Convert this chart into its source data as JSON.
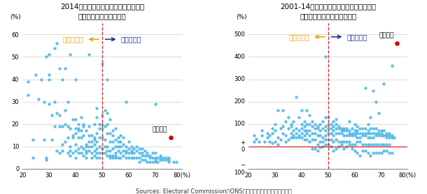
{
  "title1": "2014年時点での都市別の外国生まれの\n人口比率と離脱派の比率",
  "title2": "2001-14年における都市別の外国生まれの\n人口の増加率と離脱派の比率",
  "xlim": [
    20,
    80
  ],
  "ylim1": [
    0,
    65
  ],
  "ylim2": [
    -100,
    550
  ],
  "yticks1": [
    0,
    10,
    20,
    30,
    40,
    50,
    60
  ],
  "yticks2": [
    -100,
    0,
    100,
    200,
    300,
    400,
    500
  ],
  "xticks": [
    20,
    30,
    40,
    50,
    60,
    70,
    80
  ],
  "vline_x": 50,
  "dot_color": "#4db8e8",
  "boston_color": "#cc0000",
  "label_remain": "残留多数派",
  "label_leave": "離脱多数派",
  "label_remain_color": "#f0a500",
  "label_leave_color": "#1a3399",
  "boston_label": "ボストン",
  "boston1_x": 76,
  "boston1_y": 14,
  "boston2_x": 76,
  "boston2_y": 460,
  "source_text": "Sources: Electoral Commission、ONSなどのデータを参照として制作",
  "plot1_dots": [
    [
      22,
      33
    ],
    [
      22,
      39
    ],
    [
      24,
      5
    ],
    [
      24,
      13
    ],
    [
      25,
      42
    ],
    [
      26,
      31
    ],
    [
      27,
      40
    ],
    [
      28,
      30
    ],
    [
      28,
      13
    ],
    [
      29,
      5
    ],
    [
      29,
      4
    ],
    [
      29,
      50
    ],
    [
      30,
      51
    ],
    [
      30,
      29
    ],
    [
      30,
      40
    ],
    [
      30,
      42
    ],
    [
      31,
      13
    ],
    [
      31,
      24
    ],
    [
      32,
      54
    ],
    [
      32,
      19
    ],
    [
      32,
      30
    ],
    [
      33,
      8
    ],
    [
      33,
      25
    ],
    [
      33,
      56
    ],
    [
      34,
      45
    ],
    [
      34,
      7
    ],
    [
      34,
      24
    ],
    [
      34,
      19
    ],
    [
      35,
      40
    ],
    [
      35,
      19
    ],
    [
      35,
      11
    ],
    [
      35,
      8
    ],
    [
      36,
      45
    ],
    [
      36,
      26
    ],
    [
      36,
      20
    ],
    [
      36,
      12
    ],
    [
      37,
      19
    ],
    [
      37,
      7
    ],
    [
      37,
      14
    ],
    [
      37,
      30
    ],
    [
      38,
      6
    ],
    [
      38,
      18
    ],
    [
      38,
      10
    ],
    [
      38,
      8
    ],
    [
      38,
      51
    ],
    [
      39,
      22
    ],
    [
      39,
      15
    ],
    [
      39,
      7
    ],
    [
      39,
      14
    ],
    [
      40,
      40
    ],
    [
      40,
      18
    ],
    [
      40,
      11
    ],
    [
      40,
      5
    ],
    [
      40,
      16
    ],
    [
      40,
      8
    ],
    [
      40,
      22
    ],
    [
      41,
      17
    ],
    [
      41,
      9
    ],
    [
      41,
      7
    ],
    [
      41,
      20
    ],
    [
      41,
      14
    ],
    [
      41,
      18
    ],
    [
      42,
      14
    ],
    [
      42,
      10
    ],
    [
      42,
      7
    ],
    [
      42,
      17
    ],
    [
      42,
      23
    ],
    [
      43,
      19
    ],
    [
      43,
      15
    ],
    [
      43,
      9
    ],
    [
      43,
      6
    ],
    [
      43,
      20
    ],
    [
      44,
      17
    ],
    [
      44,
      11
    ],
    [
      44,
      7
    ],
    [
      44,
      10
    ],
    [
      44,
      8
    ],
    [
      44,
      5
    ],
    [
      45,
      8
    ],
    [
      45,
      19
    ],
    [
      45,
      15
    ],
    [
      45,
      51
    ],
    [
      45,
      10
    ],
    [
      45,
      12
    ],
    [
      46,
      12
    ],
    [
      46,
      7
    ],
    [
      46,
      5
    ],
    [
      46,
      10
    ],
    [
      46,
      15
    ],
    [
      47,
      20
    ],
    [
      47,
      13
    ],
    [
      47,
      8
    ],
    [
      47,
      6
    ],
    [
      47,
      14
    ],
    [
      47,
      11
    ],
    [
      48,
      9
    ],
    [
      48,
      16
    ],
    [
      48,
      12
    ],
    [
      48,
      5
    ],
    [
      48,
      7
    ],
    [
      48,
      23
    ],
    [
      48,
      27
    ],
    [
      49,
      14
    ],
    [
      49,
      10
    ],
    [
      49,
      7
    ],
    [
      49,
      5
    ],
    [
      49,
      18
    ],
    [
      49,
      20
    ],
    [
      50,
      24
    ],
    [
      50,
      47
    ],
    [
      50,
      20
    ],
    [
      50,
      14
    ],
    [
      50,
      9
    ],
    [
      50,
      7
    ],
    [
      50,
      18
    ],
    [
      51,
      19
    ],
    [
      51,
      13
    ],
    [
      51,
      10
    ],
    [
      51,
      7
    ],
    [
      51,
      26
    ],
    [
      52,
      16
    ],
    [
      52,
      10
    ],
    [
      52,
      8
    ],
    [
      52,
      6
    ],
    [
      52,
      20
    ],
    [
      52,
      25
    ],
    [
      52,
      40
    ],
    [
      53,
      16
    ],
    [
      53,
      12
    ],
    [
      53,
      8
    ],
    [
      53,
      6
    ],
    [
      53,
      5
    ],
    [
      53,
      22
    ],
    [
      54,
      12
    ],
    [
      54,
      9
    ],
    [
      54,
      6
    ],
    [
      54,
      5
    ],
    [
      54,
      17
    ],
    [
      54,
      15
    ],
    [
      55,
      10
    ],
    [
      55,
      7
    ],
    [
      55,
      6
    ],
    [
      55,
      5
    ],
    [
      55,
      13
    ],
    [
      55,
      18
    ],
    [
      56,
      10
    ],
    [
      56,
      8
    ],
    [
      56,
      5
    ],
    [
      56,
      14
    ],
    [
      56,
      12
    ],
    [
      57,
      10
    ],
    [
      57,
      7
    ],
    [
      57,
      5
    ],
    [
      57,
      15
    ],
    [
      57,
      12
    ],
    [
      58,
      8
    ],
    [
      58,
      6
    ],
    [
      58,
      11
    ],
    [
      58,
      14
    ],
    [
      59,
      8
    ],
    [
      59,
      5
    ],
    [
      59,
      10
    ],
    [
      59,
      7
    ],
    [
      59,
      30
    ],
    [
      60,
      7
    ],
    [
      60,
      5
    ],
    [
      60,
      9
    ],
    [
      60,
      12
    ],
    [
      61,
      8
    ],
    [
      61,
      5
    ],
    [
      61,
      10
    ],
    [
      61,
      7
    ],
    [
      62,
      7
    ],
    [
      62,
      5
    ],
    [
      62,
      9
    ],
    [
      63,
      8
    ],
    [
      63,
      5
    ],
    [
      63,
      10
    ],
    [
      64,
      7
    ],
    [
      64,
      5
    ],
    [
      64,
      9
    ],
    [
      64,
      3
    ],
    [
      65,
      7
    ],
    [
      65,
      4
    ],
    [
      65,
      9
    ],
    [
      65,
      6
    ],
    [
      66,
      6
    ],
    [
      66,
      4
    ],
    [
      66,
      8
    ],
    [
      67,
      6
    ],
    [
      67,
      3
    ],
    [
      67,
      7
    ],
    [
      68,
      5
    ],
    [
      68,
      3
    ],
    [
      68,
      6
    ],
    [
      69,
      5
    ],
    [
      69,
      3
    ],
    [
      69,
      7
    ],
    [
      70,
      5
    ],
    [
      70,
      3
    ],
    [
      70,
      7
    ],
    [
      70,
      4
    ],
    [
      70,
      29
    ],
    [
      71,
      5
    ],
    [
      71,
      3
    ],
    [
      72,
      5
    ],
    [
      72,
      4
    ],
    [
      72,
      6
    ],
    [
      73,
      5
    ],
    [
      73,
      4
    ],
    [
      74,
      4
    ],
    [
      74,
      5
    ],
    [
      75,
      4
    ],
    [
      75,
      3
    ],
    [
      75,
      5
    ],
    [
      77,
      3
    ],
    [
      78,
      3
    ]
  ],
  "plot2_dots": [
    [
      22,
      50
    ],
    [
      22,
      20
    ],
    [
      23,
      35
    ],
    [
      24,
      20
    ],
    [
      25,
      70
    ],
    [
      25,
      50
    ],
    [
      26,
      20
    ],
    [
      27,
      60
    ],
    [
      27,
      40
    ],
    [
      28,
      20
    ],
    [
      28,
      50
    ],
    [
      29,
      15
    ],
    [
      29,
      80
    ],
    [
      29,
      60
    ],
    [
      30,
      20
    ],
    [
      30,
      100
    ],
    [
      30,
      70
    ],
    [
      31,
      10
    ],
    [
      31,
      40
    ],
    [
      31,
      160
    ],
    [
      32,
      80
    ],
    [
      32,
      30
    ],
    [
      33,
      90
    ],
    [
      33,
      60
    ],
    [
      33,
      160
    ],
    [
      34,
      110
    ],
    [
      34,
      50
    ],
    [
      34,
      20
    ],
    [
      35,
      130
    ],
    [
      35,
      80
    ],
    [
      35,
      30
    ],
    [
      36,
      90
    ],
    [
      36,
      60
    ],
    [
      36,
      100
    ],
    [
      36,
      40
    ],
    [
      37,
      70
    ],
    [
      37,
      110
    ],
    [
      37,
      50
    ],
    [
      37,
      40
    ],
    [
      38,
      80
    ],
    [
      38,
      60
    ],
    [
      38,
      220
    ],
    [
      38,
      40
    ],
    [
      39,
      70
    ],
    [
      39,
      130
    ],
    [
      39,
      50
    ],
    [
      39,
      40
    ],
    [
      40,
      80
    ],
    [
      40,
      100
    ],
    [
      40,
      60
    ],
    [
      40,
      40
    ],
    [
      40,
      160
    ],
    [
      41,
      70
    ],
    [
      41,
      110
    ],
    [
      41,
      50
    ],
    [
      41,
      30
    ],
    [
      41,
      90
    ],
    [
      42,
      70
    ],
    [
      42,
      100
    ],
    [
      42,
      60
    ],
    [
      42,
      30
    ],
    [
      42,
      160
    ],
    [
      43,
      70
    ],
    [
      43,
      100
    ],
    [
      43,
      50
    ],
    [
      43,
      20
    ],
    [
      43,
      140
    ],
    [
      44,
      60
    ],
    [
      44,
      90
    ],
    [
      44,
      30
    ],
    [
      44,
      -10
    ],
    [
      44,
      110
    ],
    [
      45,
      60
    ],
    [
      45,
      80
    ],
    [
      45,
      30
    ],
    [
      45,
      -10
    ],
    [
      45,
      100
    ],
    [
      46,
      50
    ],
    [
      46,
      80
    ],
    [
      46,
      10
    ],
    [
      46,
      -20
    ],
    [
      46,
      90
    ],
    [
      47,
      50
    ],
    [
      47,
      70
    ],
    [
      47,
      20
    ],
    [
      47,
      -5
    ],
    [
      47,
      100
    ],
    [
      48,
      40
    ],
    [
      48,
      80
    ],
    [
      48,
      20
    ],
    [
      48,
      0
    ],
    [
      48,
      110
    ],
    [
      49,
      50
    ],
    [
      49,
      70
    ],
    [
      49,
      30
    ],
    [
      49,
      10
    ],
    [
      49,
      90
    ],
    [
      49,
      400
    ],
    [
      49,
      130
    ],
    [
      50,
      60
    ],
    [
      50,
      80
    ],
    [
      50,
      30
    ],
    [
      50,
      10
    ],
    [
      50,
      100
    ],
    [
      50,
      130
    ],
    [
      51,
      60
    ],
    [
      51,
      80
    ],
    [
      51,
      30
    ],
    [
      51,
      0
    ],
    [
      51,
      100
    ],
    [
      52,
      50
    ],
    [
      52,
      70
    ],
    [
      52,
      20
    ],
    [
      52,
      -20
    ],
    [
      52,
      90
    ],
    [
      52,
      110
    ],
    [
      53,
      60
    ],
    [
      53,
      80
    ],
    [
      53,
      30
    ],
    [
      53,
      -10
    ],
    [
      53,
      100
    ],
    [
      53,
      120
    ],
    [
      54,
      60
    ],
    [
      54,
      80
    ],
    [
      54,
      20
    ],
    [
      54,
      0
    ],
    [
      54,
      90
    ],
    [
      55,
      60
    ],
    [
      55,
      70
    ],
    [
      55,
      20
    ],
    [
      55,
      10
    ],
    [
      55,
      80
    ],
    [
      56,
      50
    ],
    [
      56,
      70
    ],
    [
      56,
      20
    ],
    [
      56,
      -10
    ],
    [
      56,
      80
    ],
    [
      57,
      50
    ],
    [
      57,
      70
    ],
    [
      57,
      20
    ],
    [
      57,
      0
    ],
    [
      57,
      80
    ],
    [
      58,
      50
    ],
    [
      58,
      60
    ],
    [
      58,
      20
    ],
    [
      58,
      10
    ],
    [
      58,
      70
    ],
    [
      58,
      110
    ],
    [
      59,
      50
    ],
    [
      59,
      60
    ],
    [
      59,
      10
    ],
    [
      59,
      -10
    ],
    [
      59,
      80
    ],
    [
      60,
      50
    ],
    [
      60,
      60
    ],
    [
      60,
      10
    ],
    [
      60,
      -20
    ],
    [
      60,
      70
    ],
    [
      60,
      100
    ],
    [
      61,
      40
    ],
    [
      61,
      60
    ],
    [
      61,
      20
    ],
    [
      61,
      -30
    ],
    [
      61,
      70
    ],
    [
      61,
      90
    ],
    [
      62,
      40
    ],
    [
      62,
      60
    ],
    [
      62,
      20
    ],
    [
      62,
      -40
    ],
    [
      62,
      80
    ],
    [
      63,
      50
    ],
    [
      63,
      60
    ],
    [
      63,
      10
    ],
    [
      63,
      -20
    ],
    [
      63,
      80
    ],
    [
      64,
      50
    ],
    [
      64,
      60
    ],
    [
      64,
      10
    ],
    [
      64,
      -20
    ],
    [
      64,
      80
    ],
    [
      64,
      260
    ],
    [
      65,
      40
    ],
    [
      65,
      60
    ],
    [
      65,
      10
    ],
    [
      65,
      -30
    ],
    [
      65,
      70
    ],
    [
      65,
      100
    ],
    [
      66,
      40
    ],
    [
      66,
      60
    ],
    [
      66,
      10
    ],
    [
      66,
      -40
    ],
    [
      66,
      80
    ],
    [
      66,
      130
    ],
    [
      67,
      40
    ],
    [
      67,
      60
    ],
    [
      67,
      10
    ],
    [
      67,
      -30
    ],
    [
      67,
      80
    ],
    [
      67,
      250
    ],
    [
      68,
      50
    ],
    [
      68,
      60
    ],
    [
      68,
      10
    ],
    [
      68,
      -30
    ],
    [
      68,
      80
    ],
    [
      68,
      200
    ],
    [
      69,
      50
    ],
    [
      69,
      60
    ],
    [
      69,
      10
    ],
    [
      69,
      -30
    ],
    [
      69,
      70
    ],
    [
      69,
      150
    ],
    [
      70,
      50
    ],
    [
      70,
      60
    ],
    [
      70,
      10
    ],
    [
      70,
      -30
    ],
    [
      70,
      70
    ],
    [
      71,
      50
    ],
    [
      71,
      50
    ],
    [
      71,
      10
    ],
    [
      71,
      -20
    ],
    [
      71,
      70
    ],
    [
      71,
      280
    ],
    [
      72,
      40
    ],
    [
      72,
      50
    ],
    [
      72,
      10
    ],
    [
      72,
      -20
    ],
    [
      72,
      60
    ],
    [
      73,
      40
    ],
    [
      73,
      50
    ],
    [
      73,
      10
    ],
    [
      73,
      -30
    ],
    [
      73,
      60
    ],
    [
      74,
      40
    ],
    [
      74,
      50
    ],
    [
      74,
      -30
    ],
    [
      74,
      360
    ],
    [
      75,
      40
    ]
  ]
}
